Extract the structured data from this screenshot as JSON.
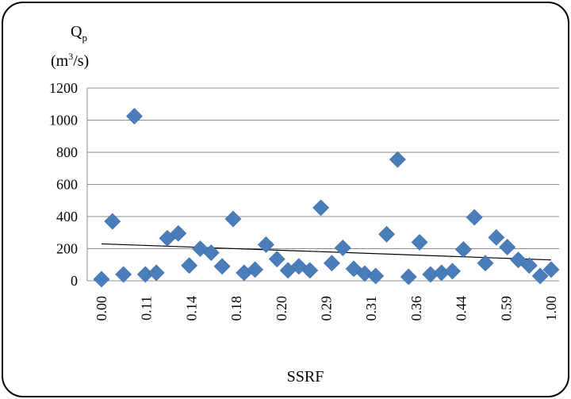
{
  "chart_data": {
    "type": "scatter",
    "ylabel_symbol": "Q",
    "ylabel_subscript": "p",
    "ylabel_unit_prefix": "(m",
    "ylabel_unit_sup": "3",
    "ylabel_unit_suffix": "/s)",
    "xlabel": "SSRF",
    "ylim": [
      0,
      1200
    ],
    "yticks": [
      0,
      200,
      400,
      600,
      800,
      1000,
      1200
    ],
    "ytick_labels": [
      "0",
      "200",
      "400",
      "600",
      "800",
      "1000",
      "1200"
    ],
    "xtick_labels": [
      "0.00",
      "0.11",
      "0.14",
      "0.18",
      "0.20",
      "0.29",
      "0.31",
      "0.36",
      "0.44",
      "0.59",
      "1.00"
    ],
    "grid": true,
    "legend": "none",
    "marker": "diamond",
    "marker_color": "#4a7ebb",
    "trendline": {
      "type": "linear",
      "start": 230,
      "end": 130,
      "color": "#000000"
    },
    "series": [
      {
        "values": [
          10,
          370,
          40,
          1025,
          40,
          50,
          265,
          295,
          95,
          200,
          175,
          90,
          385,
          50,
          70,
          225,
          135,
          65,
          90,
          65,
          455,
          110,
          205,
          75,
          45,
          30,
          290,
          755,
          25,
          240,
          40,
          50,
          60,
          195,
          395,
          110,
          270,
          210,
          130,
          95,
          30,
          70
        ]
      }
    ]
  }
}
